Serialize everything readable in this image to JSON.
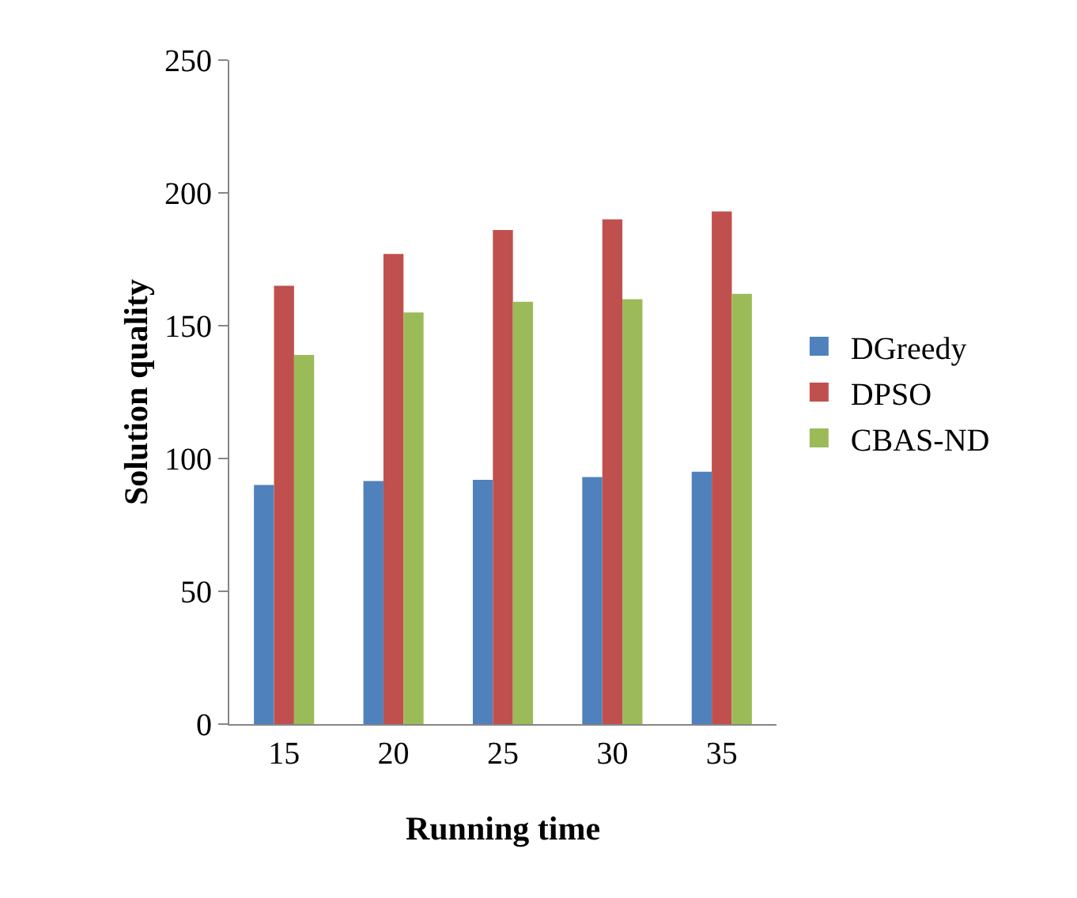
{
  "chart_data": {
    "type": "bar",
    "xlabel": "Running time",
    "ylabel": "Solution quality",
    "categories": [
      "15",
      "20",
      "25",
      "30",
      "35"
    ],
    "series": [
      {
        "name": "DGreedy",
        "color": "#4f81bd",
        "values": [
          90,
          91.5,
          92,
          93,
          95
        ]
      },
      {
        "name": "DPSO",
        "color": "#c0504d",
        "values": [
          165,
          177,
          186,
          190,
          193
        ]
      },
      {
        "name": "CBAS-ND",
        "color": "#9bbb59",
        "values": [
          139,
          155,
          159,
          160,
          162
        ]
      }
    ],
    "ylim": [
      0,
      250
    ],
    "yticks": [
      0,
      50,
      100,
      150,
      200,
      250
    ],
    "grid": false,
    "legend": "right"
  }
}
